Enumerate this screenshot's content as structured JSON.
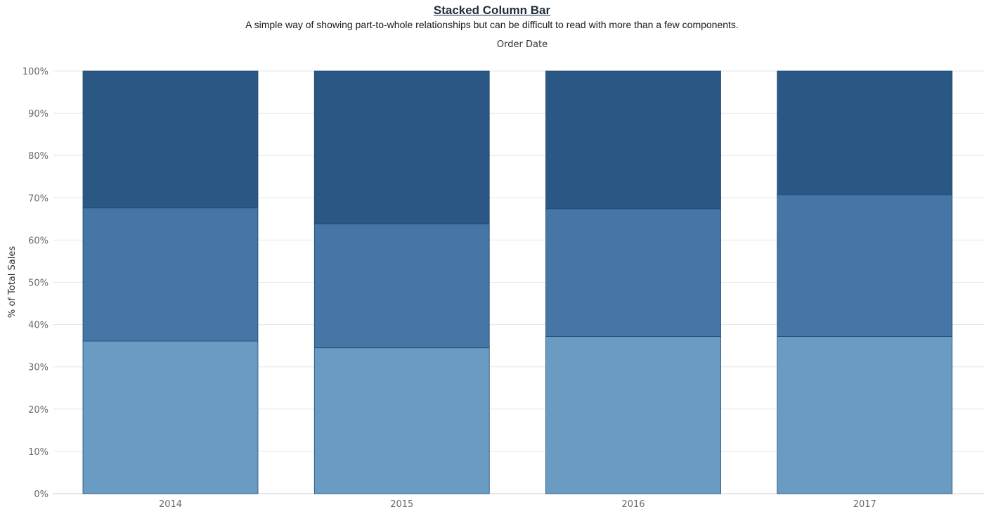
{
  "title": "Stacked Column Bar",
  "subtitle": "A simple way of showing part-to-whole relationships but can be difficult to read with more than a few components.",
  "chart_data": {
    "type": "bar",
    "stacked": true,
    "title": "Stacked Column Bar",
    "subtitle": "A simple way of showing part-to-whole relationships but can be difficult to read with more than a few components.",
    "xlabel": "Order Date",
    "ylabel": "% of Total Sales",
    "categories": [
      "2014",
      "2015",
      "2016",
      "2017"
    ],
    "series": [
      {
        "values": [
          36.1,
          34.5,
          37.2,
          37.2
        ],
        "color": "#6a9bc3"
      },
      {
        "values": [
          31.5,
          29.3,
          30.2,
          33.5
        ],
        "color": "#4576a5"
      },
      {
        "values": [
          32.4,
          36.2,
          32.6,
          29.3
        ],
        "color": "#2a5783"
      }
    ],
    "ylim": [
      0,
      100
    ],
    "yticks": [
      "0%",
      "10%",
      "20%",
      "30%",
      "40%",
      "50%",
      "60%",
      "70%",
      "80%",
      "90%",
      "100%"
    ],
    "grid": true,
    "gridline_color": "#e6e6e6"
  }
}
